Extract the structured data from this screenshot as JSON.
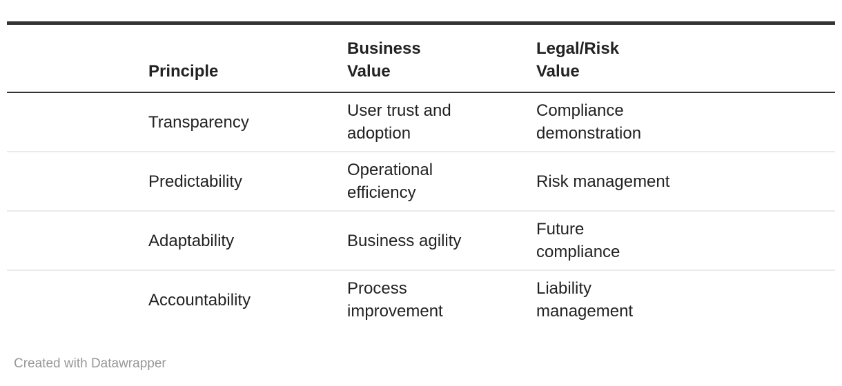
{
  "table": {
    "columns": [
      "",
      "Principle",
      "Business\nValue",
      "Legal/Risk\nValue"
    ],
    "rows": [
      {
        "cells": [
          "",
          "Transparency",
          "User trust and\nadoption",
          "Compliance\ndemonstration"
        ]
      },
      {
        "cells": [
          "",
          "Predictability",
          "Operational\nefficiency",
          "Risk management"
        ]
      },
      {
        "cells": [
          "",
          "Adaptability",
          "Business agility",
          "Future\ncompliance"
        ]
      },
      {
        "cells": [
          "",
          "Accountability",
          "Process\nimprovement",
          "Liability\nmanagement"
        ]
      }
    ]
  },
  "footer": {
    "credit": "Created with Datawrapper"
  },
  "colors": {
    "rule_dark": "#333333",
    "divider": "#eaeaea",
    "text": "#222222",
    "muted": "#979797"
  },
  "chart_data": {
    "type": "table",
    "title": "",
    "columns": [
      "",
      "Principle",
      "Business Value",
      "Legal/Risk Value"
    ],
    "rows": [
      [
        "",
        "Transparency",
        "User trust and adoption",
        "Compliance demonstration"
      ],
      [
        "",
        "Predictability",
        "Operational efficiency",
        "Risk management"
      ],
      [
        "",
        "Adaptability",
        "Business agility",
        "Future compliance"
      ],
      [
        "",
        "Accountability",
        "Process improvement",
        "Liability management"
      ]
    ],
    "credit": "Created with Datawrapper"
  }
}
